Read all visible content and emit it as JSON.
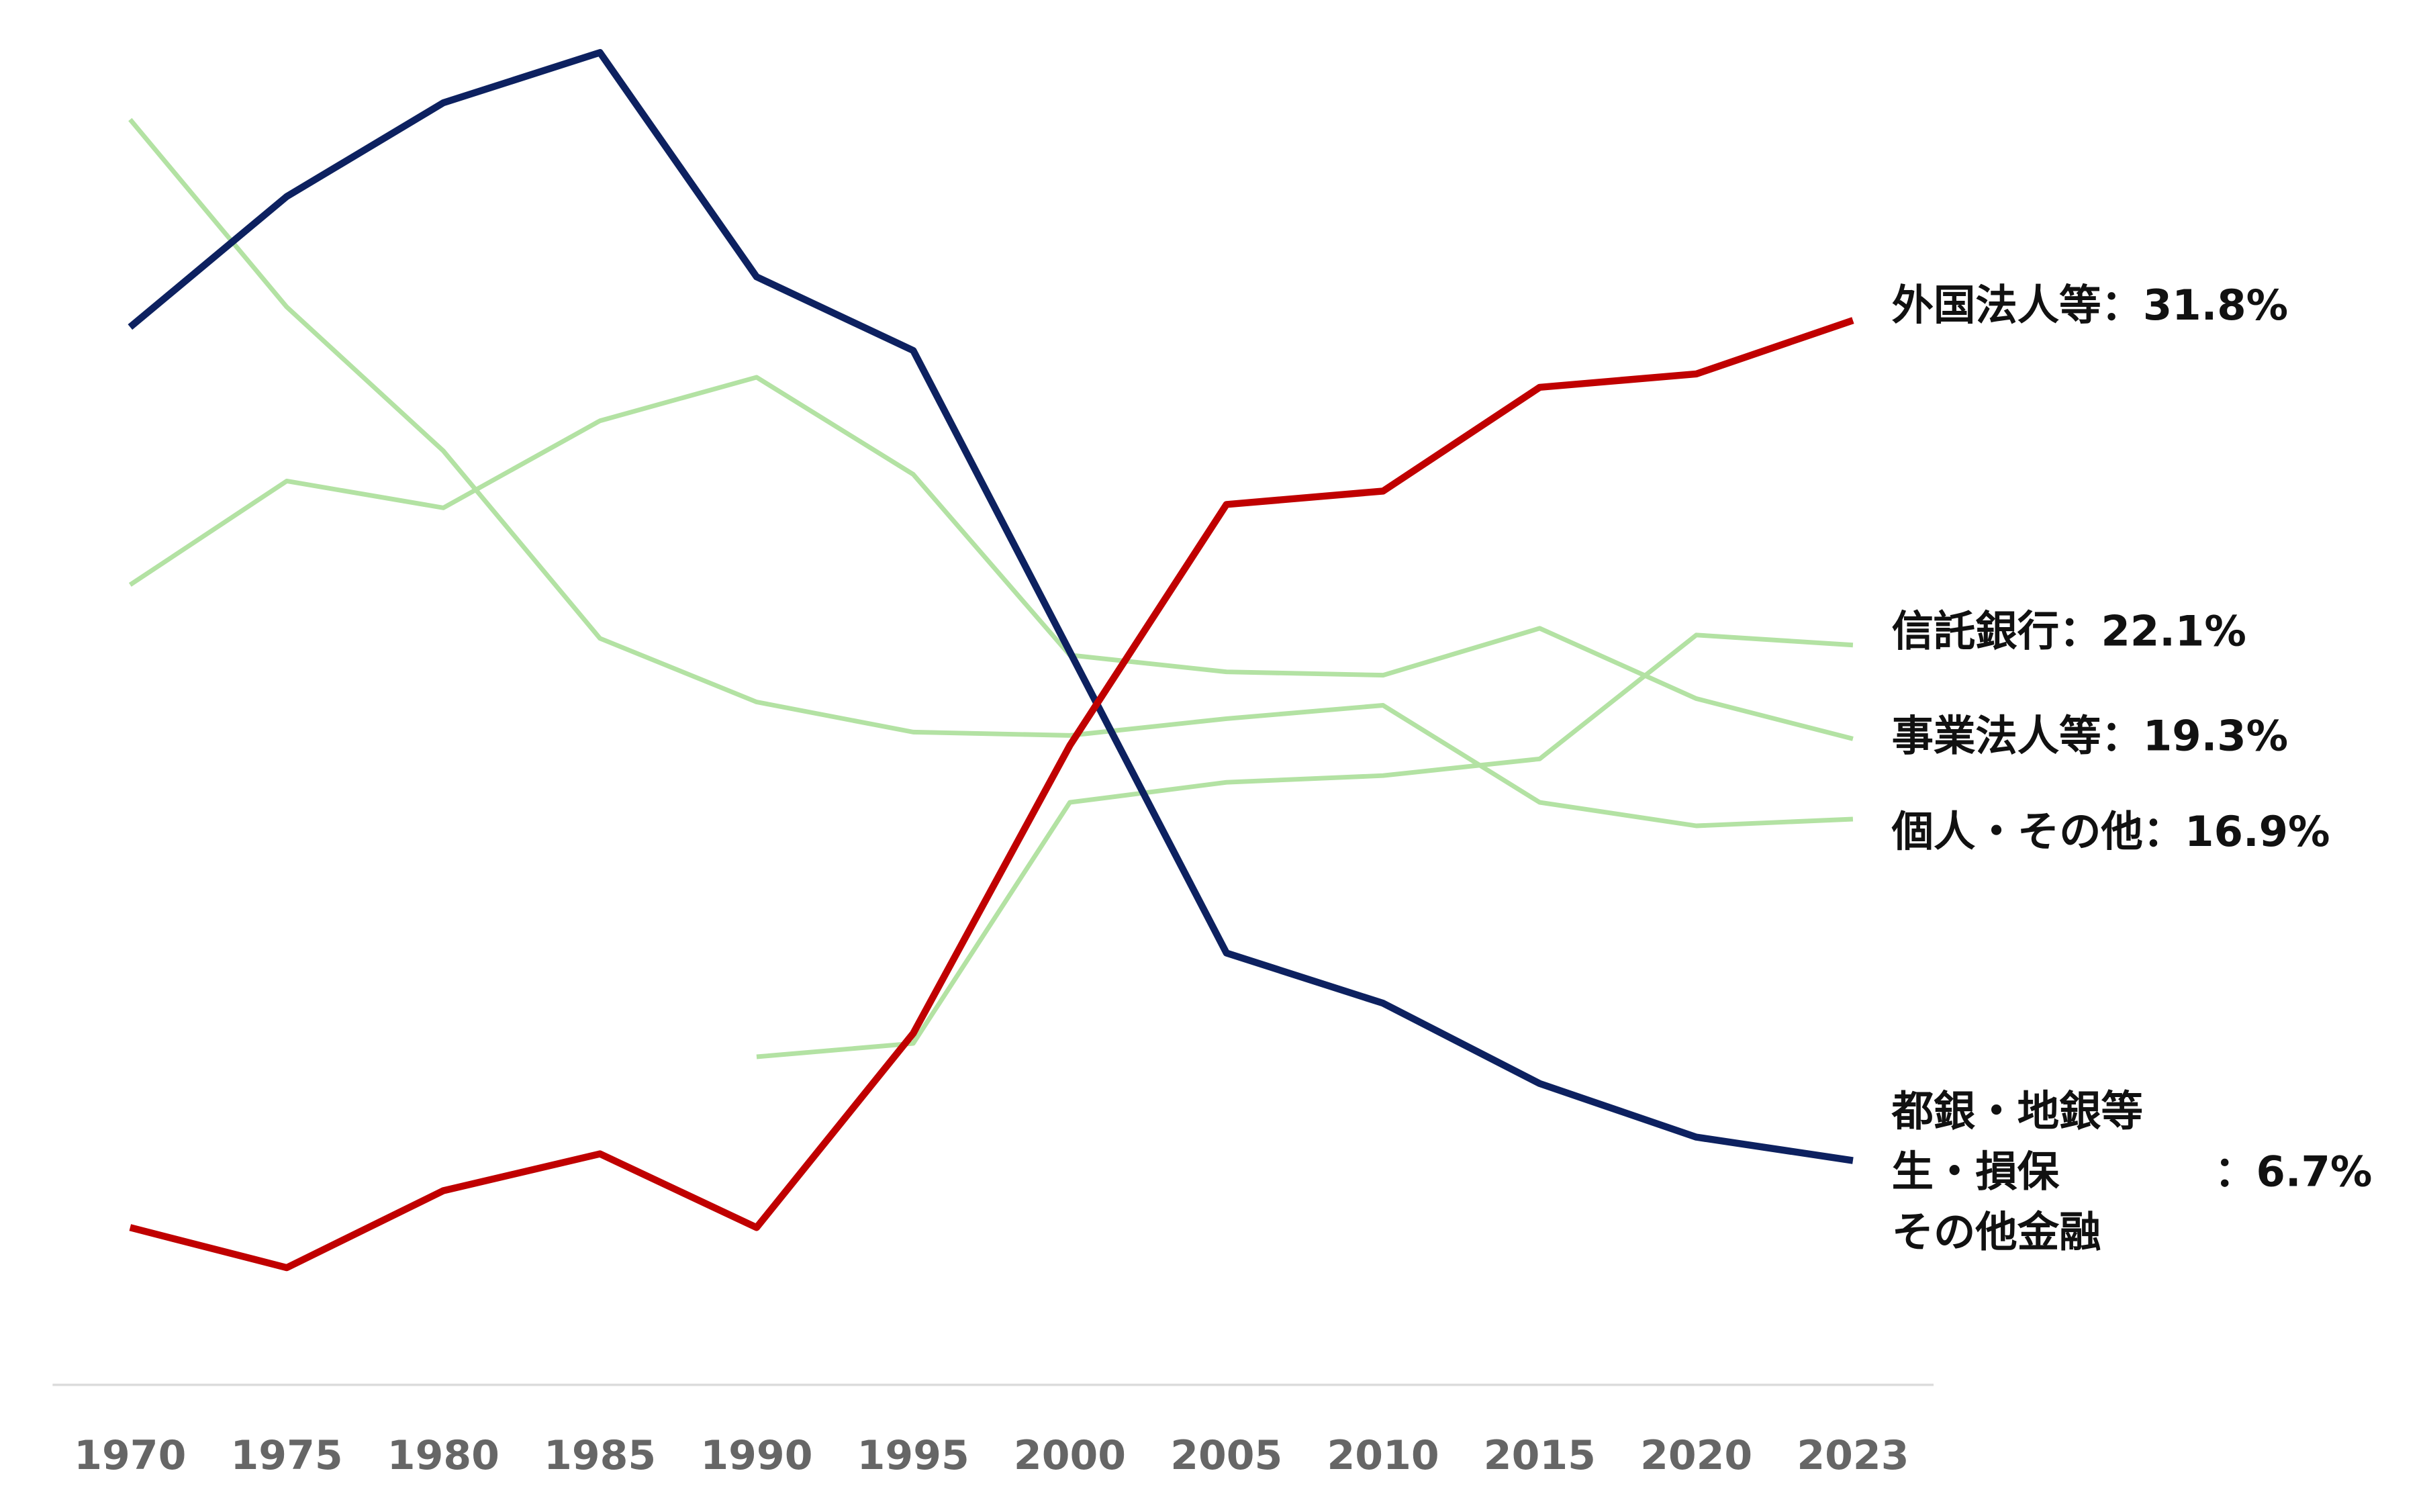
{
  "chart_data": {
    "type": "line",
    "categories": [
      "1970",
      "1975",
      "1980",
      "1985",
      "1990",
      "1995",
      "2000",
      "2005",
      "2010",
      "2015",
      "2020",
      "2023"
    ],
    "ylim": [
      0,
      41
    ],
    "grid": false,
    "series": [
      {
        "name": "個人・その他：16.9%",
        "color": "#b3e2a3",
        "values": [
          37.8,
          32.2,
          27.9,
          22.3,
          20.4,
          19.5,
          19.4,
          19.9,
          20.3,
          17.4,
          16.7,
          16.9
        ]
      },
      {
        "name": "事業法人等：19.3%",
        "color": "#b3e2a3",
        "values": [
          23.9,
          27.0,
          26.2,
          28.8,
          30.1,
          27.2,
          21.8,
          21.3,
          21.2,
          22.6,
          20.5,
          19.3
        ]
      },
      {
        "name": "信託銀行：22.1%",
        "color": "#b3e2a3",
        "values": [
          null,
          null,
          null,
          null,
          9.8,
          10.2,
          17.4,
          18.0,
          18.2,
          18.7,
          22.4,
          22.1
        ]
      },
      {
        "name": [
          "都銀・地銀等",
          "生・損保",
          "その他金融"
        ],
        "end_value_label": "：6.7%",
        "color": "#0d2160",
        "values": [
          31.6,
          35.5,
          38.3,
          39.8,
          33.1,
          30.9,
          21.9,
          12.9,
          11.4,
          9.0,
          7.4,
          6.7
        ]
      },
      {
        "name": "外国法人等：31.8%",
        "color": "#c00000",
        "values": [
          4.7,
          3.5,
          5.8,
          6.9,
          4.7,
          10.5,
          19.1,
          26.3,
          26.7,
          29.8,
          30.2,
          31.8
        ]
      }
    ]
  }
}
